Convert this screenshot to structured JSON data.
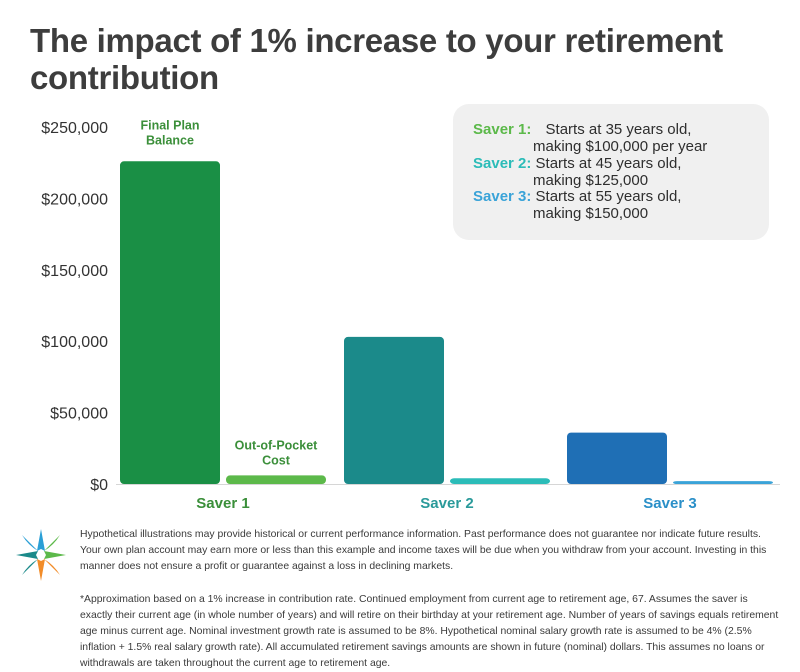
{
  "title": "The impact of 1% increase to your retirement contribution",
  "colors": {
    "green_dark": "#1a8f45",
    "green_light": "#5cb94a",
    "teal_dark": "#1b8a8a",
    "teal_light": "#2bbcb8",
    "blue_dark": "#1f6fb5",
    "blue_light": "#3aa3d8",
    "label_green": "#3b8f3a",
    "label_teal": "#2a9a9a",
    "label_blue": "#2a8fc8"
  },
  "legend": [
    {
      "name": "Saver 1:",
      "line1": "Starts at 35 years old,",
      "line2": "making $100,000 per year"
    },
    {
      "name": "Saver 2:",
      "line1": "Starts at 45 years old,",
      "line2": "making $125,000"
    },
    {
      "name": "Saver 3:",
      "line1": "Starts at 55 years old,",
      "line2": "making $150,000"
    }
  ],
  "chart_data": {
    "type": "bar",
    "title": "The impact of 1% increase to your retirement contribution",
    "categories": [
      "Saver 1",
      "Saver 2",
      "Saver 3"
    ],
    "series": [
      {
        "name": "Final Plan Balance",
        "values": [
          226000,
          103000,
          36000
        ]
      },
      {
        "name": "Out-of-Pocket Cost",
        "values": [
          6000,
          4000,
          2000
        ]
      }
    ],
    "series_labels": [
      {
        "series": 0,
        "category": 0,
        "text": "Final Plan Balance"
      },
      {
        "series": 1,
        "category": 0,
        "text": "Out-of-Pocket Cost"
      }
    ],
    "ylim": [
      0,
      250000
    ],
    "yticks": [
      0,
      50000,
      100000,
      150000,
      200000,
      250000
    ],
    "ytick_labels": [
      "$0",
      "$50,000",
      "$100,000",
      "$150,000",
      "$200,000",
      "$250,000"
    ],
    "xlabel": "",
    "ylabel": ""
  },
  "disclaimer": "Hypothetical illustrations may provide historical or current performance information. Past performance does not guarantee nor indicate future results. Your own plan account may earn more or less than this example and income taxes will be due when you withdraw from your account. Investing in this manner does not ensure a profit or guarantee against a loss in declining markets.",
  "footnote": "*Approximation based on a 1% increase in contribution rate. Continued employment from current age to retirement age, 67. Assumes the saver is exactly their current age (in whole number of years) and will retire on their birthday at your retirement age. Number of years of savings equals retirement age minus current age. Nominal investment growth rate is assumed to be 8%. Hypothetical nominal salary growth rate is assumed to be 4% (2.5% inflation + 1.5% real salary growth rate). All accumulated retirement savings amounts are shown in future (nominal) dollars. This assumes no loans or withdrawals are taken throughout the current age to retirement age."
}
